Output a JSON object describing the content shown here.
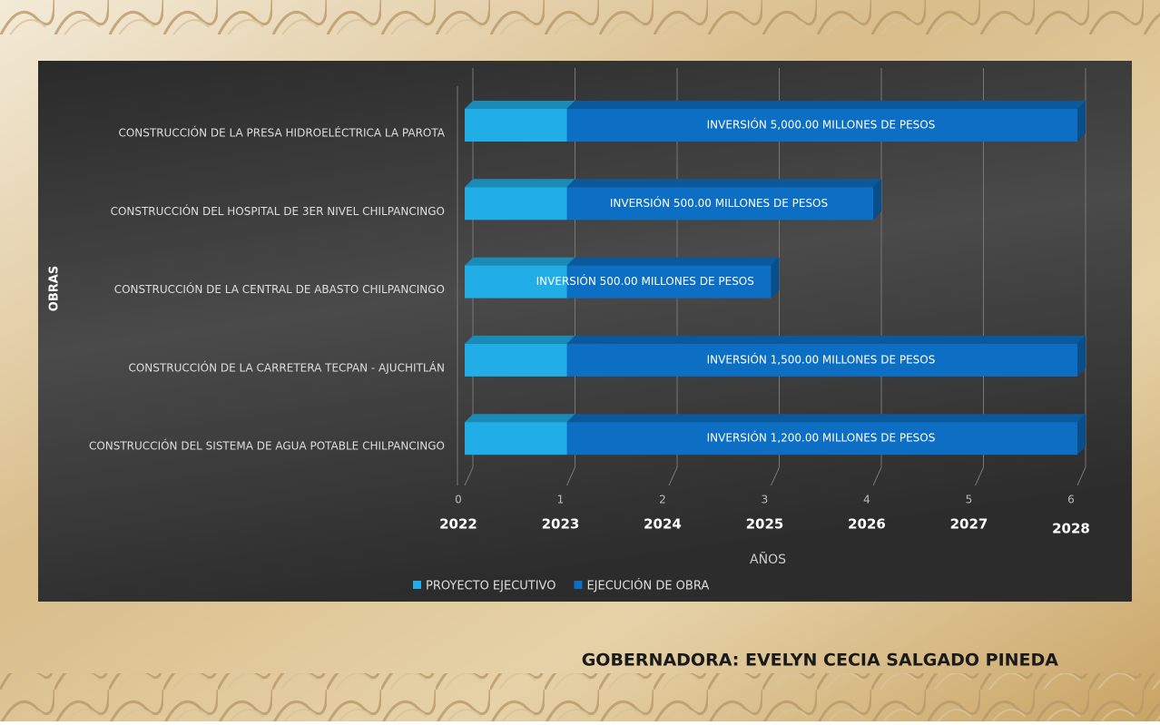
{
  "chart_data": {
    "type": "stacked-bar-horizontal",
    "categories": [
      "CONSTRUCCIÓN DE LA PRESA HIDROELÉCTRICA LA PAROTA",
      "CONSTRUCCIÓN DEL HOSPITAL DE 3ER NIVEL CHILPANCINGO",
      "CONSTRUCCIÓN DE LA CENTRAL DE ABASTO CHILPANCINGO",
      "CONSTRUCCIÓN DE LA CARRETERA TECPAN - AJUCHITLÁN",
      "CONSTRUCCIÓN DEL SISTEMA DE AGUA POTABLE CHILPANCINGO"
    ],
    "series": [
      {
        "name": "PROYECTO EJECUTIVO",
        "color": "#21aee6",
        "values": [
          1,
          1,
          1,
          1,
          1
        ]
      },
      {
        "name": "EJECUCIÓN DE OBRA",
        "color": "#0d6fc4",
        "values": [
          5,
          3,
          2,
          5,
          5
        ]
      }
    ],
    "annotations": [
      "INVERSIÓN 5,000.00 MILLONES DE PESOS",
      "INVERSIÓN 500.00 MILLONES DE PESOS",
      "INVERSIÓN 500.00 MILLONES DE PESOS",
      "INVERSIÓN 1,500.00 MILLONES DE PESOS",
      "INVERSIÓN 1,200.00 MILLONES DE PESOS"
    ],
    "xlim": [
      0,
      6
    ],
    "xticks": [
      0,
      1,
      2,
      3,
      4,
      5,
      6
    ],
    "year_labels": [
      "2022",
      "2023",
      "2024",
      "2025",
      "2026",
      "2027",
      "2028"
    ],
    "xlabel": "AÑOS",
    "ylabel": "OBRAS",
    "grid": true,
    "legend": "bottom"
  },
  "footer": "GOBERNADORA: EVELYN CECIA SALGADO PINEDA"
}
